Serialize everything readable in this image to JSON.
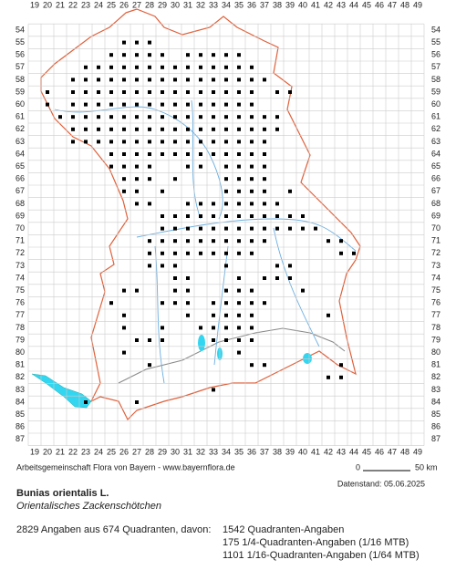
{
  "columns": [
    19,
    20,
    21,
    22,
    23,
    24,
    25,
    26,
    27,
    28,
    29,
    30,
    31,
    32,
    33,
    34,
    35,
    36,
    37,
    38,
    39,
    40,
    41,
    42,
    43,
    44,
    45,
    46,
    47,
    48,
    49
  ],
  "rows": [
    54,
    55,
    56,
    57,
    58,
    59,
    60,
    61,
    62,
    63,
    64,
    65,
    66,
    67,
    68,
    69,
    70,
    71,
    72,
    73,
    74,
    75,
    76,
    77,
    78,
    79,
    80,
    81,
    82,
    83,
    84,
    85,
    86,
    87
  ],
  "records": [
    {
      "row": 55,
      "cols": [
        26,
        27,
        28
      ]
    },
    {
      "row": 56,
      "cols": [
        25,
        26,
        27,
        28,
        29,
        31,
        32,
        33,
        34,
        35
      ]
    },
    {
      "row": 57,
      "cols": [
        23,
        24,
        25,
        26,
        27,
        28,
        29,
        30,
        31,
        32,
        33,
        34,
        35,
        36
      ]
    },
    {
      "row": 58,
      "cols": [
        22,
        23,
        24,
        25,
        26,
        27,
        28,
        29,
        30,
        31,
        32,
        33,
        34,
        35,
        36,
        37
      ]
    },
    {
      "row": 59,
      "cols": [
        20,
        22,
        23,
        24,
        25,
        26,
        27,
        28,
        29,
        30,
        31,
        32,
        33,
        34,
        35,
        36,
        38,
        39
      ]
    },
    {
      "row": 60,
      "cols": [
        20,
        22,
        23,
        24,
        25,
        26,
        27,
        28,
        29,
        30,
        31,
        32,
        33,
        34,
        35,
        36
      ]
    },
    {
      "row": 61,
      "cols": [
        21,
        22,
        23,
        24,
        25,
        26,
        27,
        28,
        29,
        30,
        31,
        32,
        33,
        34,
        35,
        36,
        37,
        38
      ]
    },
    {
      "row": 62,
      "cols": [
        22,
        23,
        24,
        25,
        26,
        27,
        28,
        29,
        30,
        31,
        32,
        33,
        34,
        35,
        36,
        37,
        38
      ]
    },
    {
      "row": 63,
      "cols": [
        22,
        23,
        24,
        25,
        26,
        27,
        28,
        29,
        30,
        31,
        32,
        33,
        34,
        35,
        36,
        37
      ]
    },
    {
      "row": 64,
      "cols": [
        25,
        26,
        27,
        28,
        29,
        30,
        31,
        32,
        33,
        34,
        35,
        36,
        37
      ]
    },
    {
      "row": 65,
      "cols": [
        25,
        26,
        27,
        28,
        31,
        32,
        34,
        35,
        36,
        37
      ]
    },
    {
      "row": 66,
      "cols": [
        26,
        27,
        28,
        30,
        34,
        35,
        36,
        37
      ]
    },
    {
      "row": 67,
      "cols": [
        26,
        27,
        29,
        34,
        35,
        36,
        37,
        39
      ]
    },
    {
      "row": 68,
      "cols": [
        27,
        28,
        31,
        32,
        33,
        34,
        35,
        36,
        37,
        38
      ]
    },
    {
      "row": 69,
      "cols": [
        29,
        30,
        31,
        32,
        33,
        34,
        35,
        36,
        37,
        38,
        39,
        40
      ]
    },
    {
      "row": 70,
      "cols": [
        29,
        30,
        31,
        32,
        33,
        34,
        35,
        36,
        37,
        38,
        39,
        40,
        41
      ]
    },
    {
      "row": 71,
      "cols": [
        28,
        29,
        30,
        31,
        32,
        33,
        34,
        35,
        36,
        37,
        42,
        43
      ]
    },
    {
      "row": 72,
      "cols": [
        28,
        29,
        30,
        31,
        32,
        33,
        34,
        35,
        36,
        43,
        44
      ]
    },
    {
      "row": 73,
      "cols": [
        28,
        29,
        30,
        34,
        38,
        39
      ]
    },
    {
      "row": 74,
      "cols": [
        30,
        31,
        35,
        37,
        38,
        39
      ]
    },
    {
      "row": 75,
      "cols": [
        26,
        27,
        30,
        31,
        34,
        35,
        36,
        40
      ]
    },
    {
      "row": 76,
      "cols": [
        25,
        29,
        30,
        31,
        33,
        34,
        35,
        36,
        37
      ]
    },
    {
      "row": 77,
      "cols": [
        26,
        31,
        33,
        34,
        35,
        36,
        42
      ]
    },
    {
      "row": 78,
      "cols": [
        26,
        29,
        32,
        33,
        34,
        35,
        36
      ]
    },
    {
      "row": 79,
      "cols": [
        27,
        28,
        29,
        33,
        34,
        35,
        36
      ]
    },
    {
      "row": 80,
      "cols": [
        26,
        35
      ]
    },
    {
      "row": 81,
      "cols": [
        28,
        36,
        37,
        43
      ]
    },
    {
      "row": 82,
      "cols": [
        42,
        43
      ]
    },
    {
      "row": 83,
      "cols": [
        33
      ]
    },
    {
      "row": 84,
      "cols": [
        23,
        27
      ]
    }
  ],
  "footer": {
    "credit": "Arbeitsgemeinschaft Flora von Bayern - www.bayernflora.de",
    "scale_start": "0",
    "scale_end": "50 km",
    "date": "Datenstand: 05.06.2025"
  },
  "species": {
    "name": "Bunias orientalis L.",
    "common_name": "Orientalisches Zackenschötchen"
  },
  "summary": {
    "total": "2829 Angaben aus 674 Quadranten, davon:",
    "lines": [
      "1542 Quadranten-Angaben",
      "175 1/4-Quadranten-Angaben (1/16 MTB)",
      "1101 1/16-Quadranten-Angaben (1/64 MTB)"
    ]
  }
}
